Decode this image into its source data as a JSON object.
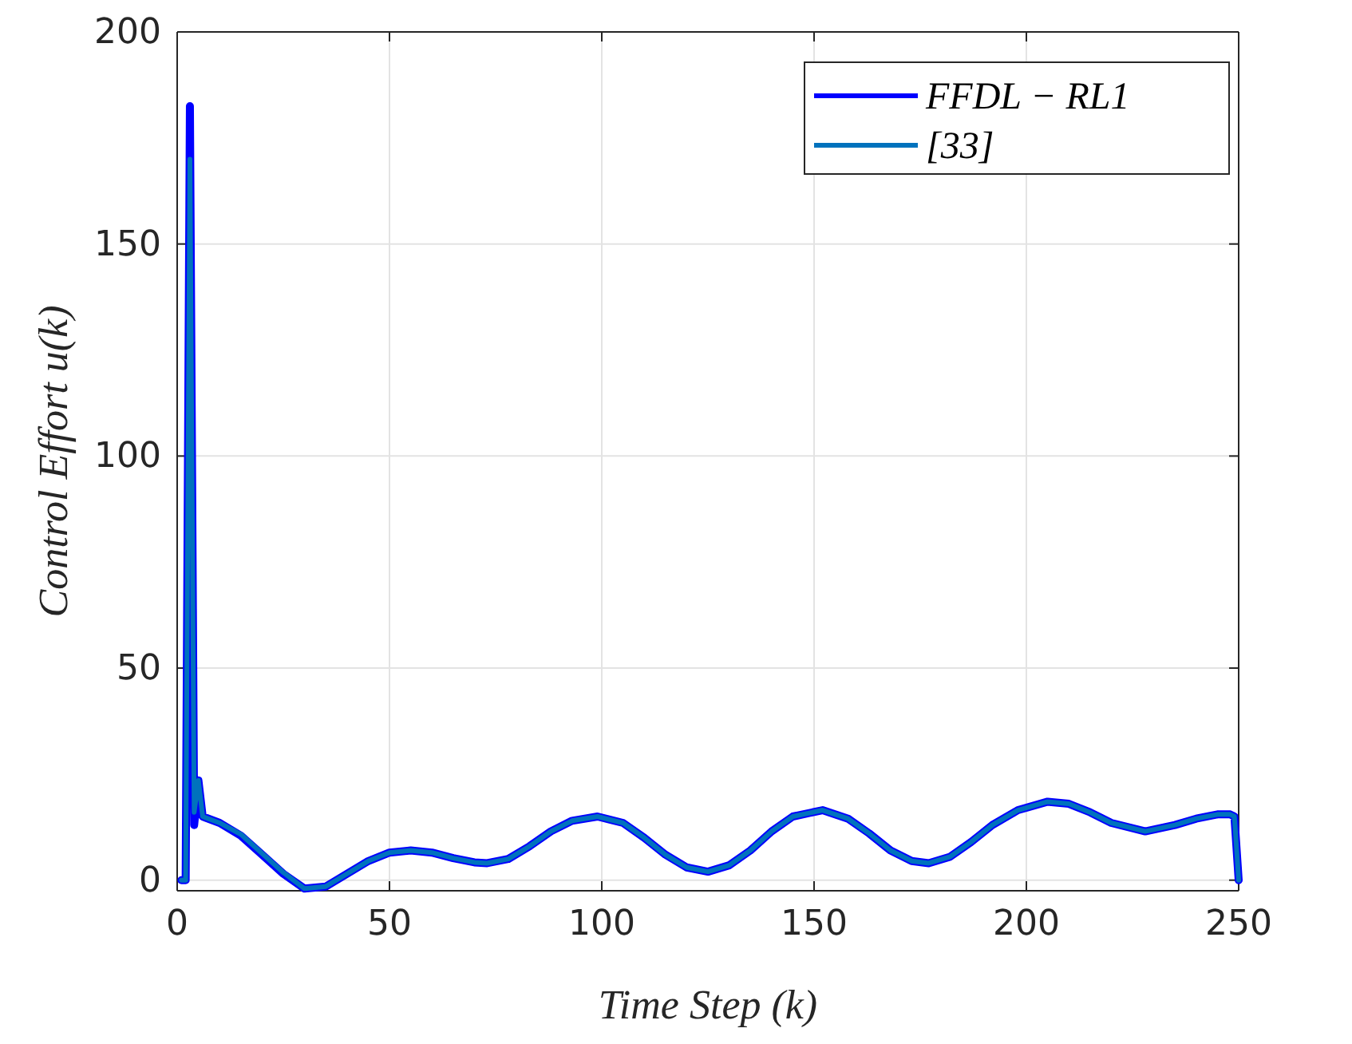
{
  "chart_data": {
    "type": "line",
    "xlabel": "Time Step (k)",
    "ylabel": "Control Effort u(k)",
    "x": [
      1,
      2,
      3,
      4,
      5,
      6,
      10,
      15,
      20,
      25,
      30,
      35,
      40,
      45,
      50,
      55,
      60,
      65,
      70,
      73,
      78,
      83,
      88,
      93,
      99,
      105,
      110,
      115,
      120,
      125,
      130,
      135,
      140,
      145,
      152,
      158,
      163,
      168,
      173,
      177,
      182,
      187,
      192,
      198,
      205,
      210,
      215,
      220,
      228,
      235,
      240,
      245,
      248,
      249,
      250
    ],
    "series": [
      {
        "name": "FFDL − RL1",
        "color": "#0000ff",
        "values": [
          0,
          0,
          182.5,
          13,
          23.5,
          15,
          13.5,
          10.5,
          6,
          1.5,
          -2,
          -1.5,
          1.5,
          4.5,
          6.5,
          7,
          6.5,
          5.2,
          4.2,
          4,
          5,
          8,
          11.5,
          14,
          15,
          13.5,
          10,
          6,
          3,
          2,
          3.5,
          7,
          11.5,
          15,
          16.5,
          14.5,
          11,
          7,
          4.5,
          4,
          5.5,
          9,
          13,
          16.5,
          18.5,
          18,
          16,
          13.5,
          11.5,
          13,
          14.5,
          15.5,
          15.5,
          15,
          0
        ]
      },
      {
        "name": "[33]",
        "color": "#0072bd",
        "values": [
          0,
          0,
          170,
          16,
          23.5,
          15,
          13.5,
          10.8,
          6.3,
          1.8,
          -2,
          -1.5,
          1.5,
          4.5,
          6.5,
          7,
          6.5,
          5.2,
          4.2,
          4,
          5,
          8,
          11.5,
          14,
          15,
          13.5,
          10,
          6,
          3,
          2,
          3.5,
          7,
          11.5,
          15,
          16.5,
          14.5,
          11,
          7,
          4.5,
          4,
          5.5,
          9,
          13,
          16.5,
          18.5,
          18,
          16,
          13.5,
          11.5,
          13,
          14.5,
          15.5,
          15.5,
          15,
          0
        ]
      }
    ],
    "xlim": [
      0,
      250
    ],
    "xticks": [
      0,
      50,
      100,
      150,
      200,
      250
    ],
    "ylim": [
      -2.5,
      200
    ],
    "yticks": [
      0,
      50,
      100,
      150,
      200
    ],
    "grid": true,
    "legend": "top right",
    "line_style": "solid",
    "marker": "none"
  }
}
